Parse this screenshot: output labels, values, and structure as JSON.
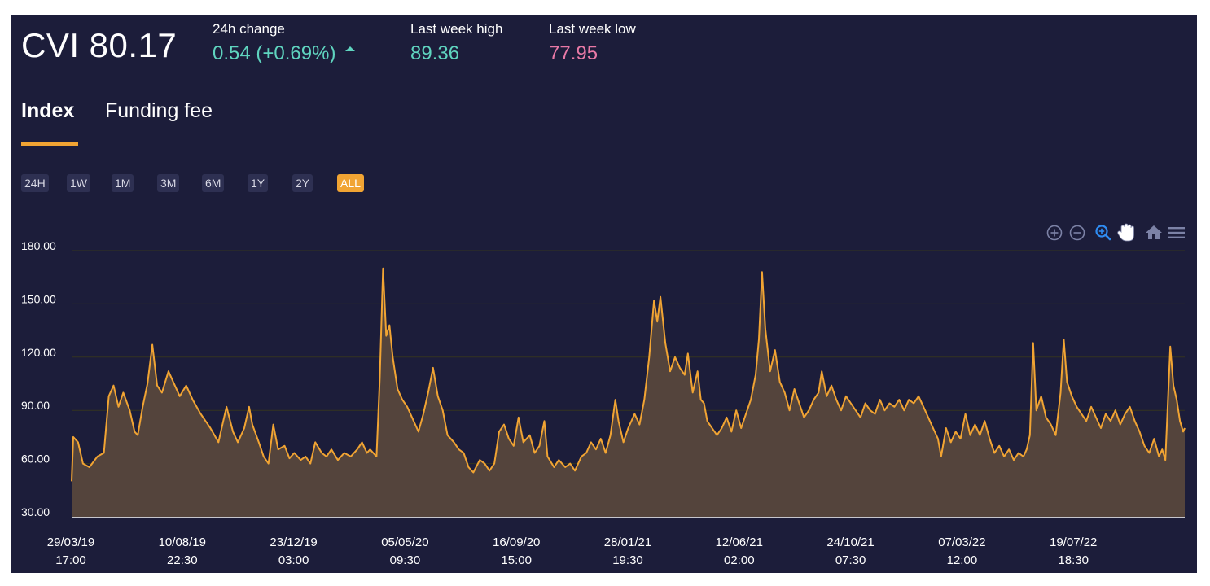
{
  "header": {
    "title": "CVI 80.17",
    "stats": {
      "change": {
        "label": "24h change",
        "value": "0.54 (+0.69%)"
      },
      "high": {
        "label": "Last week high",
        "value": "89.36"
      },
      "low": {
        "label": "Last week low",
        "value": "77.95"
      }
    }
  },
  "tabs": [
    {
      "label": "Index",
      "active": true
    },
    {
      "label": "Funding fee",
      "active": false
    }
  ],
  "ranges": [
    "24H",
    "1W",
    "1M",
    "3M",
    "6M",
    "1Y",
    "2Y",
    "ALL"
  ],
  "active_range": "ALL",
  "toolbar": [
    "zoom-in-icon",
    "zoom-out-icon",
    "selection-zoom-icon",
    "pan-hand-icon",
    "home-reset-icon",
    "menu-icon"
  ],
  "colors": {
    "background": "#1c1d3a",
    "line": "#f1a433",
    "fill": "#54443c",
    "positive": "#5fd4bf",
    "negative": "#e879a6",
    "grid": "#34351f"
  },
  "chart_data": {
    "type": "area",
    "title": "",
    "xlabel": "",
    "ylabel": "",
    "ylim": [
      30,
      180
    ],
    "y_ticks": [
      "180.00",
      "150.00",
      "120.00",
      "90.00",
      "60.00",
      "30.00"
    ],
    "x_ticks": [
      {
        "date": "29/03/19",
        "time": "17:00"
      },
      {
        "date": "10/08/19",
        "time": "22:30"
      },
      {
        "date": "23/12/19",
        "time": "03:00"
      },
      {
        "date": "05/05/20",
        "time": "09:30"
      },
      {
        "date": "16/09/20",
        "time": "15:00"
      },
      {
        "date": "28/01/21",
        "time": "19:30"
      },
      {
        "date": "12/06/21",
        "time": "02:00"
      },
      {
        "date": "24/10/21",
        "time": "07:30"
      },
      {
        "date": "07/03/22",
        "time": "12:00"
      },
      {
        "date": "19/07/22",
        "time": "18:30"
      }
    ],
    "grid": true,
    "series": [
      {
        "name": "",
        "points": [
          [
            "2019-03-29",
            50
          ],
          [
            "2019-03-31",
            75
          ],
          [
            "2019-04-06",
            72
          ],
          [
            "2019-04-12",
            60
          ],
          [
            "2019-04-20",
            58
          ],
          [
            "2019-04-30",
            64
          ],
          [
            "2019-05-08",
            66
          ],
          [
            "2019-05-14",
            98
          ],
          [
            "2019-05-20",
            104
          ],
          [
            "2019-05-26",
            92
          ],
          [
            "2019-06-01",
            100
          ],
          [
            "2019-06-09",
            90
          ],
          [
            "2019-06-15",
            78
          ],
          [
            "2019-06-19",
            76
          ],
          [
            "2019-06-25",
            92
          ],
          [
            "2019-07-01",
            105
          ],
          [
            "2019-07-07",
            127
          ],
          [
            "2019-07-13",
            104
          ],
          [
            "2019-07-19",
            100
          ],
          [
            "2019-07-27",
            112
          ],
          [
            "2019-08-02",
            106
          ],
          [
            "2019-08-10",
            98
          ],
          [
            "2019-08-18",
            104
          ],
          [
            "2019-08-26",
            96
          ],
          [
            "2019-09-05",
            88
          ],
          [
            "2019-09-17",
            80
          ],
          [
            "2019-09-27",
            72
          ],
          [
            "2019-10-03",
            84
          ],
          [
            "2019-10-07",
            92
          ],
          [
            "2019-10-15",
            78
          ],
          [
            "2019-10-21",
            72
          ],
          [
            "2019-10-29",
            80
          ],
          [
            "2019-11-04",
            92
          ],
          [
            "2019-11-08",
            82
          ],
          [
            "2019-11-16",
            72
          ],
          [
            "2019-11-22",
            64
          ],
          [
            "2019-11-28",
            60
          ],
          [
            "2019-12-04",
            82
          ],
          [
            "2019-12-10",
            68
          ],
          [
            "2019-12-18",
            70
          ],
          [
            "2019-12-24",
            63
          ],
          [
            "2019-12-30",
            66
          ],
          [
            "2020-01-07",
            62
          ],
          [
            "2020-01-13",
            64
          ],
          [
            "2020-01-19",
            60
          ],
          [
            "2020-01-25",
            72
          ],
          [
            "2020-02-02",
            66
          ],
          [
            "2020-02-08",
            64
          ],
          [
            "2020-02-14",
            68
          ],
          [
            "2020-02-22",
            62
          ],
          [
            "2020-03-01",
            66
          ],
          [
            "2020-03-09",
            64
          ],
          [
            "2020-03-17",
            68
          ],
          [
            "2020-03-23",
            72
          ],
          [
            "2020-03-29",
            66
          ],
          [
            "2020-04-02",
            68
          ],
          [
            "2020-04-10",
            64
          ],
          [
            "2020-04-14",
            108
          ],
          [
            "2020-04-18",
            170
          ],
          [
            "2020-04-22",
            132
          ],
          [
            "2020-04-26",
            138
          ],
          [
            "2020-04-30",
            120
          ],
          [
            "2020-05-06",
            102
          ],
          [
            "2020-05-12",
            96
          ],
          [
            "2020-05-18",
            92
          ],
          [
            "2020-05-26",
            84
          ],
          [
            "2020-06-01",
            78
          ],
          [
            "2020-06-07",
            88
          ],
          [
            "2020-06-13",
            100
          ],
          [
            "2020-06-19",
            114
          ],
          [
            "2020-06-25",
            98
          ],
          [
            "2020-07-01",
            90
          ],
          [
            "2020-07-07",
            76
          ],
          [
            "2020-07-15",
            72
          ],
          [
            "2020-07-21",
            68
          ],
          [
            "2020-07-27",
            66
          ],
          [
            "2020-08-02",
            58
          ],
          [
            "2020-08-08",
            55
          ],
          [
            "2020-08-16",
            62
          ],
          [
            "2020-08-22",
            60
          ],
          [
            "2020-08-28",
            56
          ],
          [
            "2020-09-03",
            60
          ],
          [
            "2020-09-09",
            78
          ],
          [
            "2020-09-15",
            82
          ],
          [
            "2020-09-21",
            74
          ],
          [
            "2020-09-27",
            70
          ],
          [
            "2020-10-03",
            86
          ],
          [
            "2020-10-09",
            72
          ],
          [
            "2020-10-17",
            76
          ],
          [
            "2020-10-23",
            66
          ],
          [
            "2020-10-29",
            70
          ],
          [
            "2020-11-04",
            84
          ],
          [
            "2020-11-08",
            64
          ],
          [
            "2020-11-16",
            58
          ],
          [
            "2020-11-22",
            62
          ],
          [
            "2020-11-30",
            58
          ],
          [
            "2020-12-06",
            60
          ],
          [
            "2020-12-12",
            56
          ],
          [
            "2020-12-20",
            64
          ],
          [
            "2020-12-26",
            66
          ],
          [
            "2021-01-01",
            72
          ],
          [
            "2021-01-07",
            68
          ],
          [
            "2021-01-13",
            74
          ],
          [
            "2021-01-19",
            66
          ],
          [
            "2021-01-25",
            76
          ],
          [
            "2021-01-31",
            96
          ],
          [
            "2021-02-04",
            84
          ],
          [
            "2021-02-10",
            72
          ],
          [
            "2021-02-16",
            80
          ],
          [
            "2021-02-24",
            88
          ],
          [
            "2021-03-02",
            82
          ],
          [
            "2021-03-08",
            96
          ],
          [
            "2021-03-14",
            120
          ],
          [
            "2021-03-20",
            152
          ],
          [
            "2021-03-24",
            140
          ],
          [
            "2021-03-28",
            154
          ],
          [
            "2021-04-03",
            128
          ],
          [
            "2021-04-09",
            112
          ],
          [
            "2021-04-15",
            120
          ],
          [
            "2021-04-21",
            114
          ],
          [
            "2021-04-27",
            110
          ],
          [
            "2021-05-01",
            122
          ],
          [
            "2021-05-07",
            100
          ],
          [
            "2021-05-13",
            112
          ],
          [
            "2021-05-17",
            96
          ],
          [
            "2021-05-21",
            94
          ],
          [
            "2021-05-25",
            84
          ],
          [
            "2021-05-31",
            80
          ],
          [
            "2021-06-06",
            76
          ],
          [
            "2021-06-12",
            80
          ],
          [
            "2021-06-18",
            86
          ],
          [
            "2021-06-24",
            78
          ],
          [
            "2021-06-30",
            90
          ],
          [
            "2021-07-06",
            80
          ],
          [
            "2021-07-12",
            88
          ],
          [
            "2021-07-18",
            96
          ],
          [
            "2021-07-24",
            110
          ],
          [
            "2021-07-28",
            130
          ],
          [
            "2021-08-01",
            168
          ],
          [
            "2021-08-05",
            136
          ],
          [
            "2021-08-11",
            112
          ],
          [
            "2021-08-17",
            124
          ],
          [
            "2021-08-23",
            106
          ],
          [
            "2021-08-29",
            100
          ],
          [
            "2021-09-04",
            90
          ],
          [
            "2021-09-10",
            102
          ],
          [
            "2021-09-16",
            94
          ],
          [
            "2021-09-22",
            86
          ],
          [
            "2021-09-28",
            90
          ],
          [
            "2021-10-04",
            96
          ],
          [
            "2021-10-10",
            100
          ],
          [
            "2021-10-14",
            112
          ],
          [
            "2021-10-20",
            98
          ],
          [
            "2021-10-26",
            104
          ],
          [
            "2021-11-01",
            96
          ],
          [
            "2021-11-07",
            90
          ],
          [
            "2021-11-13",
            98
          ],
          [
            "2021-11-19",
            94
          ],
          [
            "2021-11-25",
            90
          ],
          [
            "2021-12-01",
            86
          ],
          [
            "2021-12-07",
            94
          ],
          [
            "2021-12-13",
            90
          ],
          [
            "2021-12-19",
            88
          ],
          [
            "2021-12-25",
            96
          ],
          [
            "2021-12-31",
            90
          ],
          [
            "2022-01-06",
            94
          ],
          [
            "2022-01-12",
            92
          ],
          [
            "2022-01-18",
            96
          ],
          [
            "2022-01-24",
            90
          ],
          [
            "2022-01-30",
            96
          ],
          [
            "2022-02-05",
            94
          ],
          [
            "2022-02-11",
            98
          ],
          [
            "2022-02-17",
            92
          ],
          [
            "2022-02-23",
            86
          ],
          [
            "2022-03-01",
            80
          ],
          [
            "2022-03-07",
            74
          ],
          [
            "2022-03-11",
            64
          ],
          [
            "2022-03-17",
            80
          ],
          [
            "2022-03-23",
            72
          ],
          [
            "2022-03-29",
            78
          ],
          [
            "2022-04-04",
            74
          ],
          [
            "2022-04-10",
            88
          ],
          [
            "2022-04-16",
            76
          ],
          [
            "2022-04-22",
            82
          ],
          [
            "2022-04-28",
            76
          ],
          [
            "2022-05-04",
            84
          ],
          [
            "2022-05-10",
            74
          ],
          [
            "2022-05-16",
            66
          ],
          [
            "2022-05-22",
            70
          ],
          [
            "2022-05-28",
            64
          ],
          [
            "2022-06-03",
            68
          ],
          [
            "2022-06-09",
            62
          ],
          [
            "2022-06-15",
            66
          ],
          [
            "2022-06-21",
            64
          ],
          [
            "2022-06-25",
            68
          ],
          [
            "2022-06-29",
            76
          ],
          [
            "2022-07-03",
            128
          ],
          [
            "2022-07-07",
            90
          ],
          [
            "2022-07-13",
            98
          ],
          [
            "2022-07-19",
            86
          ],
          [
            "2022-07-25",
            82
          ],
          [
            "2022-07-31",
            76
          ],
          [
            "2022-08-06",
            100
          ],
          [
            "2022-08-10",
            130
          ],
          [
            "2022-08-14",
            106
          ],
          [
            "2022-08-20",
            98
          ],
          [
            "2022-08-26",
            92
          ],
          [
            "2022-09-01",
            88
          ],
          [
            "2022-09-07",
            84
          ],
          [
            "2022-09-13",
            92
          ],
          [
            "2022-09-19",
            86
          ],
          [
            "2022-09-25",
            80
          ],
          [
            "2022-10-01",
            88
          ],
          [
            "2022-10-07",
            84
          ],
          [
            "2022-10-13",
            90
          ],
          [
            "2022-10-19",
            82
          ],
          [
            "2022-10-25",
            88
          ],
          [
            "2022-10-31",
            92
          ],
          [
            "2022-11-06",
            84
          ],
          [
            "2022-11-12",
            78
          ],
          [
            "2022-11-18",
            70
          ],
          [
            "2022-11-24",
            66
          ],
          [
            "2022-11-30",
            74
          ],
          [
            "2022-12-06",
            64
          ],
          [
            "2022-12-10",
            68
          ],
          [
            "2022-12-14",
            62
          ],
          [
            "2022-12-20",
            126
          ],
          [
            "2022-12-24",
            104
          ],
          [
            "2022-12-28",
            96
          ],
          [
            "2023-01-01",
            84
          ],
          [
            "2023-01-05",
            78
          ],
          [
            "2023-01-07",
            80
          ]
        ]
      }
    ]
  }
}
